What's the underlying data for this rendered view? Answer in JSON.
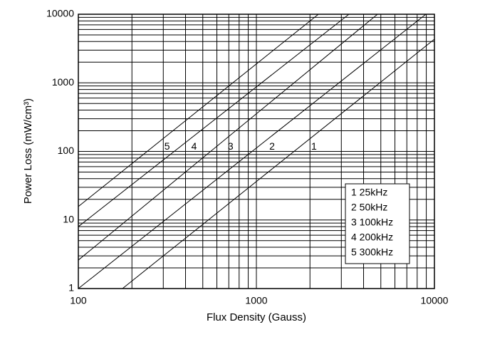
{
  "chart_data": {
    "type": "line",
    "xlabel": "Flux Density (Gauss)",
    "ylabel": "Power Loss (mW/cm³)",
    "log_x": true,
    "log_y": true,
    "grid": true,
    "color": "#000000",
    "xlim": [
      100,
      10000
    ],
    "xticks": [
      100,
      1000,
      10000
    ],
    "ylim": [
      1,
      10000
    ],
    "yticks": [
      1,
      10,
      100,
      1000,
      10000
    ],
    "series": [
      {
        "name": "1 25kHz",
        "label": "1",
        "x": [
          177,
          10000
        ],
        "values": [
          1,
          4330
        ]
      },
      {
        "name": "2 50kHz",
        "label": "2",
        "x": [
          100,
          8950
        ],
        "values": [
          1,
          10000
        ]
      },
      {
        "name": "3 100kHz",
        "label": "3",
        "x": [
          100,
          4790
        ],
        "values": [
          2.6,
          10000
        ]
      },
      {
        "name": "4 200kHz",
        "label": "4",
        "x": [
          100,
          3310
        ],
        "values": [
          8,
          10000
        ]
      },
      {
        "name": "5 300kHz",
        "label": "5",
        "x": [
          100,
          2230
        ],
        "values": [
          15.7,
          10000
        ]
      }
    ]
  }
}
